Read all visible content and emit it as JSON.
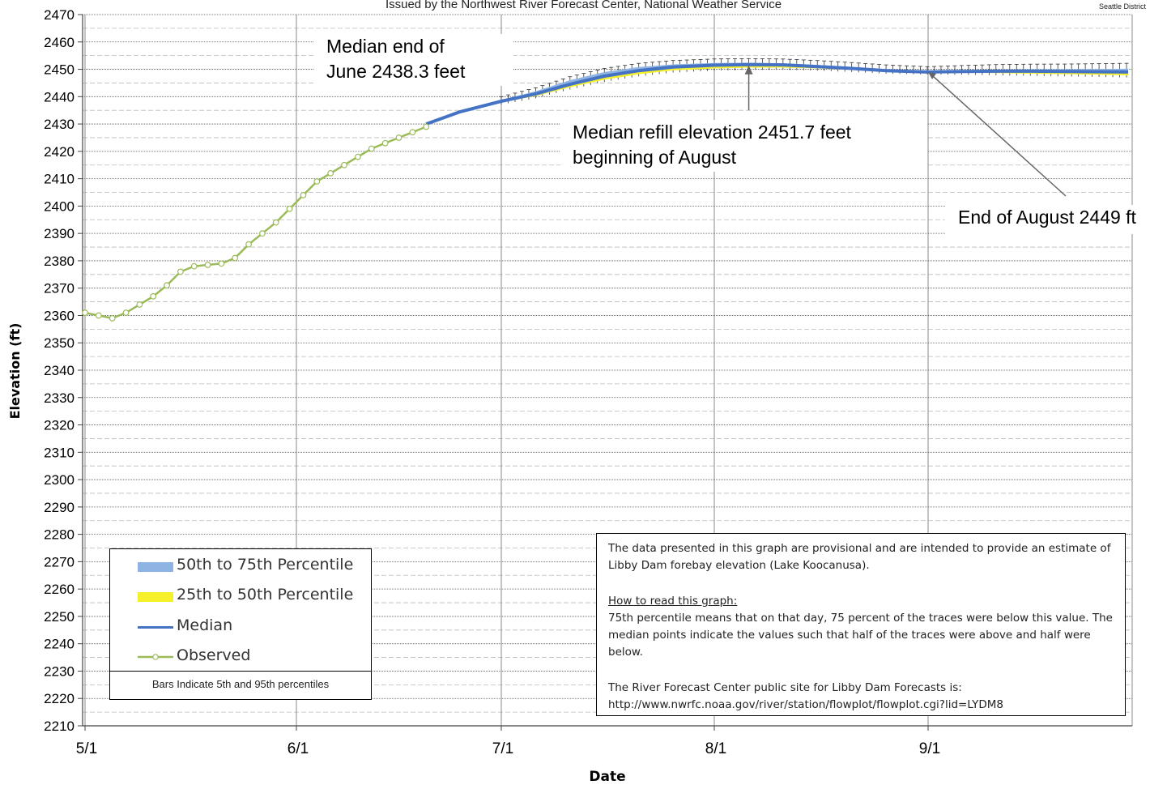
{
  "header": {
    "issued_by": "Issued by the Northwest River Forecast Center, National Weather Service",
    "logo_text": "Seattle District"
  },
  "annotations": {
    "june": [
      "Median end of",
      "June 2438.3 feet"
    ],
    "refill": [
      "Median refill elevation 2451.7 feet",
      "beginning of August"
    ],
    "august_end": "End of August 2449 ft"
  },
  "legend": {
    "items": [
      {
        "label": "50th to 75th Percentile",
        "color": "#8eb4e3"
      },
      {
        "label": "25th to 50th Percentile",
        "color": "#f5f02a"
      },
      {
        "label": "Median",
        "color": "#4472c4"
      },
      {
        "label": "Observed",
        "color": "#9bbb59"
      }
    ],
    "note": "Bars Indicate 5th and 95th percentiles"
  },
  "info": {
    "para1": "The data presented  in this graph are provisional and are intended to provide an estimate of Libby Dam forebay elevation (Lake Koocanusa).",
    "heading": "How to read this graph:",
    "para2": "75th percentile means that on that day, 75 percent of the traces were  below this value.  The median points indicate the values such that half of  the traces were above and half were  below.",
    "para3_line1": "The River Forecast Center  public site for Libby Dam Forecasts is:",
    "para3_line2": "http://www.nwrfc.noaa.gov/river/station/flowplot/flowplot.cgi?lid=LYDM8"
  },
  "chart_data": {
    "type": "line",
    "xlabel": "Date",
    "ylabel": "Elevation (ft)",
    "x_ticks": [
      "5/1",
      "6/1",
      "7/1",
      "8/1",
      "9/1"
    ],
    "ylim": [
      2210,
      2470
    ],
    "y_ticks": [
      2210,
      2220,
      2230,
      2240,
      2250,
      2260,
      2270,
      2280,
      2290,
      2300,
      2310,
      2320,
      2330,
      2340,
      2350,
      2360,
      2370,
      2380,
      2390,
      2400,
      2410,
      2420,
      2430,
      2440,
      2450,
      2460,
      2470
    ],
    "grid": true,
    "series": [
      {
        "name": "Observed",
        "color": "#9bbb59",
        "x": [
          "5/1",
          "5/3",
          "5/5",
          "5/7",
          "5/9",
          "5/11",
          "5/13",
          "5/15",
          "5/17",
          "5/19",
          "5/21",
          "5/23",
          "5/25",
          "5/27",
          "5/29",
          "5/31",
          "6/2",
          "6/4",
          "6/6",
          "6/8",
          "6/10",
          "6/12",
          "6/14",
          "6/16",
          "6/18",
          "6/20"
        ],
        "values": [
          2361,
          2360,
          2359,
          2361,
          2364,
          2367,
          2371,
          2376,
          2378,
          2378.5,
          2379,
          2381,
          2386,
          2390,
          2394,
          2399,
          2404,
          2409,
          2412,
          2415,
          2418,
          2421,
          2423,
          2425,
          2427,
          2429
        ]
      },
      {
        "name": "Median",
        "color": "#4472c4",
        "x": [
          "6/20",
          "6/25",
          "7/1",
          "7/6",
          "7/11",
          "7/16",
          "7/21",
          "7/26",
          "8/1",
          "8/6",
          "8/11",
          "8/16",
          "8/21",
          "8/26",
          "9/1",
          "9/6",
          "9/11",
          "9/16",
          "9/21",
          "9/26",
          "9/30"
        ],
        "values": [
          2430,
          2434.5,
          2438.3,
          2441,
          2444.5,
          2447.5,
          2449.5,
          2450.8,
          2451.5,
          2451.7,
          2451.6,
          2451,
          2450.3,
          2449.5,
          2449,
          2449.2,
          2449.3,
          2449.3,
          2449.2,
          2449.1,
          2449
        ]
      },
      {
        "name": "50th to 75th Percentile",
        "color": "#8eb4e3",
        "x": [
          "7/1",
          "7/6",
          "7/11",
          "7/16",
          "7/21",
          "7/26",
          "8/1",
          "8/6",
          "8/11",
          "8/16",
          "8/21",
          "8/26",
          "9/1",
          "9/6",
          "9/11",
          "9/16",
          "9/21",
          "9/26",
          "9/30"
        ],
        "low": [
          2438.3,
          2441,
          2444.5,
          2447.5,
          2449.5,
          2450.8,
          2451.5,
          2451.7,
          2451.6,
          2451,
          2450.3,
          2449.5,
          2449,
          2449.2,
          2449.3,
          2449.3,
          2449.2,
          2449.1,
          2449
        ],
        "high": [
          2438.8,
          2442,
          2446,
          2449,
          2450.8,
          2451.8,
          2452.3,
          2452.4,
          2452.2,
          2451.6,
          2450.8,
          2449.9,
          2449.2,
          2449.6,
          2449.9,
          2450,
          2450,
          2450.1,
          2450.2
        ]
      },
      {
        "name": "25th to 50th Percentile",
        "color": "#f5f02a",
        "x": [
          "7/1",
          "7/6",
          "7/11",
          "7/16",
          "7/21",
          "7/26",
          "8/1",
          "8/6",
          "8/11",
          "8/16",
          "8/21",
          "8/26",
          "9/1",
          "9/6",
          "9/11",
          "9/16",
          "9/21",
          "9/26",
          "9/30"
        ],
        "low": [
          2437.9,
          2440.2,
          2443.4,
          2446.2,
          2448.2,
          2449.6,
          2450.3,
          2450.6,
          2450.6,
          2450.3,
          2449.8,
          2449.2,
          2448.9,
          2448.8,
          2448.6,
          2448.4,
          2448.2,
          2448,
          2447.8
        ],
        "high": [
          2438.3,
          2441,
          2444.5,
          2447.5,
          2449.5,
          2450.8,
          2451.5,
          2451.7,
          2451.6,
          2451,
          2450.3,
          2449.5,
          2449,
          2449.2,
          2449.3,
          2449.3,
          2449.2,
          2449.1,
          2449
        ]
      }
    ]
  }
}
